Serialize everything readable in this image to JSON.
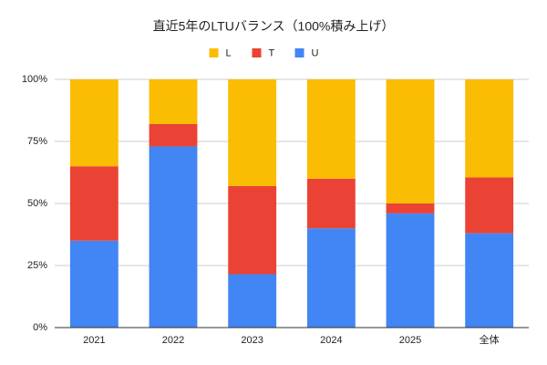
{
  "chart_data": {
    "type": "bar",
    "stacked": true,
    "title": "直近5年のLTUバランス（100%積み上げ）",
    "categories": [
      "2021",
      "2022",
      "2023",
      "2024",
      "2025",
      "全体"
    ],
    "series": [
      {
        "name": "L",
        "color": "#fbbc04",
        "values": [
          35,
          18,
          43,
          40,
          50,
          39.5
        ]
      },
      {
        "name": "T",
        "color": "#ea4335",
        "values": [
          30,
          9,
          35.5,
          20,
          4,
          22.5
        ]
      },
      {
        "name": "U",
        "color": "#4285f4",
        "values": [
          35,
          73,
          21.5,
          40,
          46,
          38
        ]
      }
    ],
    "ylim": [
      0,
      100
    ],
    "yticks": [
      {
        "value": 0,
        "label": "0%"
      },
      {
        "value": 25,
        "label": "25%"
      },
      {
        "value": 50,
        "label": "50%"
      },
      {
        "value": 75,
        "label": "75%"
      },
      {
        "value": 100,
        "label": "100%"
      }
    ],
    "grid": true,
    "legend": "top"
  }
}
